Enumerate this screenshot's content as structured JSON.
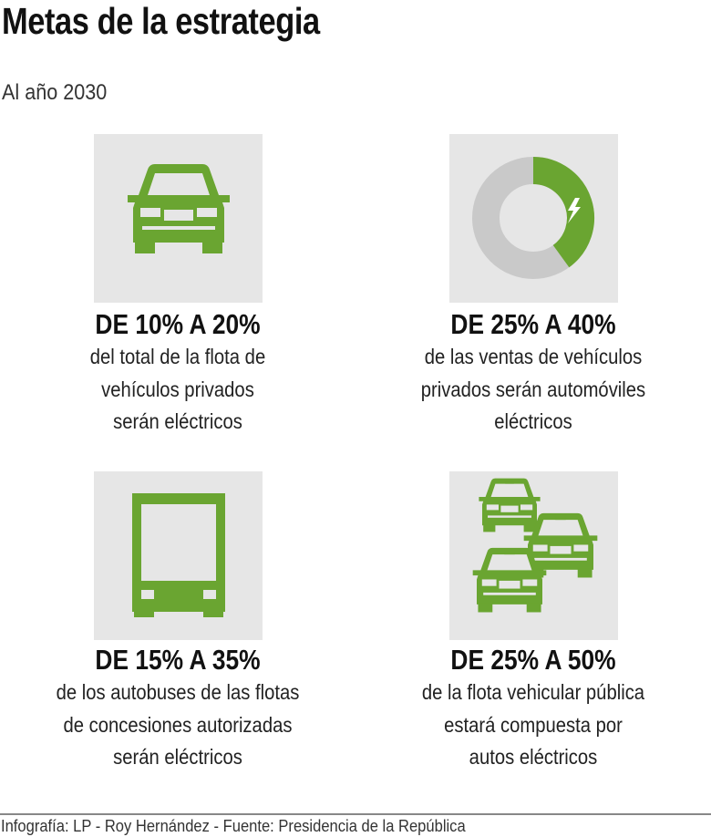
{
  "title": "Metas de la estrategia",
  "subtitle": "Al año 2030",
  "colors": {
    "accent": "#6aa531",
    "panel": "#e6e6e6",
    "donut_gray": "#c9c9c9"
  },
  "goals": [
    {
      "icon": "car-icon",
      "heading": "DE 10% A 20%",
      "lines": [
        "del total de la flota de",
        "vehículos privados",
        "serán eléctricos"
      ]
    },
    {
      "icon": "donut-chart-icon",
      "share_electric_percent": 40,
      "heading": "DE 25% A 40%",
      "lines": [
        "de las ventas de vehículos",
        "privados serán automóviles",
        "eléctricos"
      ]
    },
    {
      "icon": "bus-icon",
      "heading": "DE 15% A 35%",
      "lines": [
        "de los autobuses de las flotas",
        "de concesiones autorizadas",
        "serán eléctricos"
      ]
    },
    {
      "icon": "cars-fleet-icon",
      "heading": "DE 25% A 50%",
      "lines": [
        "de la flota vehicular pública",
        "estará compuesta por",
        "autos eléctricos"
      ]
    }
  ],
  "footer": "Infografía: LP - Roy Hernández - Fuente: Presidencia de la República"
}
